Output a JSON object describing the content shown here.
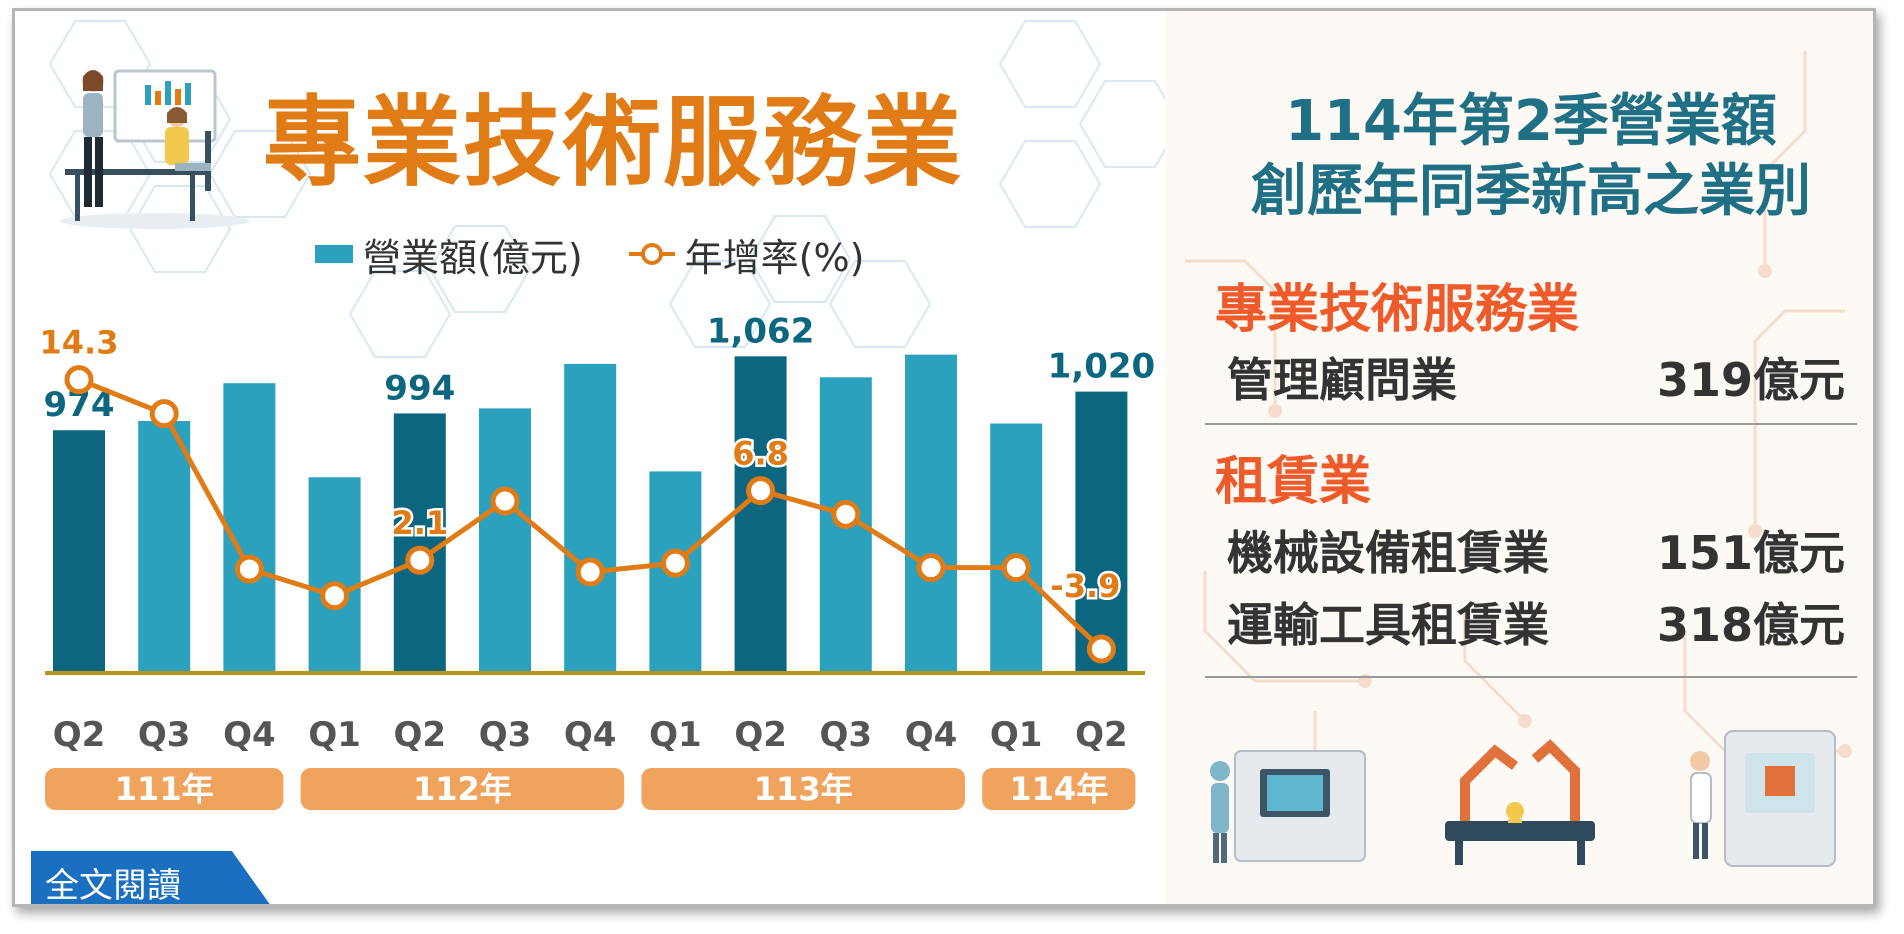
{
  "title": "專業技術服務業",
  "legend": {
    "bar": "營業額(億元)",
    "line": "年增率(%)"
  },
  "chart_data": {
    "type": "bar",
    "categories": [
      "Q2",
      "Q3",
      "Q4",
      "Q1",
      "Q2",
      "Q3",
      "Q4",
      "Q1",
      "Q2",
      "Q3",
      "Q4",
      "Q1",
      "Q2"
    ],
    "year_groups": [
      {
        "label": "111年",
        "start": 0,
        "end": 2
      },
      {
        "label": "112年",
        "start": 3,
        "end": 6
      },
      {
        "label": "113年",
        "start": 7,
        "end": 10
      },
      {
        "label": "114年",
        "start": 11,
        "end": 12
      }
    ],
    "series": [
      {
        "name": "營業額(億元)",
        "type": "bar",
        "values": [
          974,
          985,
          1030,
          918,
          994,
          1000,
          1053,
          925,
          1062,
          1037,
          1064,
          982,
          1020
        ]
      },
      {
        "name": "年增率(%)",
        "type": "line",
        "values": [
          14.3,
          12.0,
          1.5,
          -0.3,
          2.1,
          6.1,
          1.3,
          1.9,
          6.8,
          5.2,
          1.6,
          1.6,
          -3.9
        ]
      }
    ],
    "highlight_indices": [
      0,
      4,
      8,
      12
    ],
    "bar_labels": {
      "0": "974",
      "4": "994",
      "8": "1,062",
      "12": "1,020"
    },
    "line_labels": {
      "0": "14.3",
      "4": "2.1",
      "8": "6.8",
      "12": "-3.9"
    },
    "colors": {
      "bar": "#2ba1bd",
      "bar_highlight": "#0d6680",
      "line": "#e07b16",
      "axis": "#b5941c",
      "year_band": "#f0a35c"
    }
  },
  "right_panel": {
    "title_line1": "114年第2季營業額",
    "title_line2": "創歷年同季新高之業別",
    "sections": [
      {
        "category": "專業技術服務業",
        "items": [
          {
            "name": "管理顧問業",
            "value": "319億元"
          }
        ]
      },
      {
        "category": "租賃業",
        "items": [
          {
            "name": "機械設備租賃業",
            "value": "151億元"
          },
          {
            "name": "運輸工具租賃業",
            "value": "318億元"
          }
        ]
      }
    ]
  },
  "read_more": "全文閱讀"
}
